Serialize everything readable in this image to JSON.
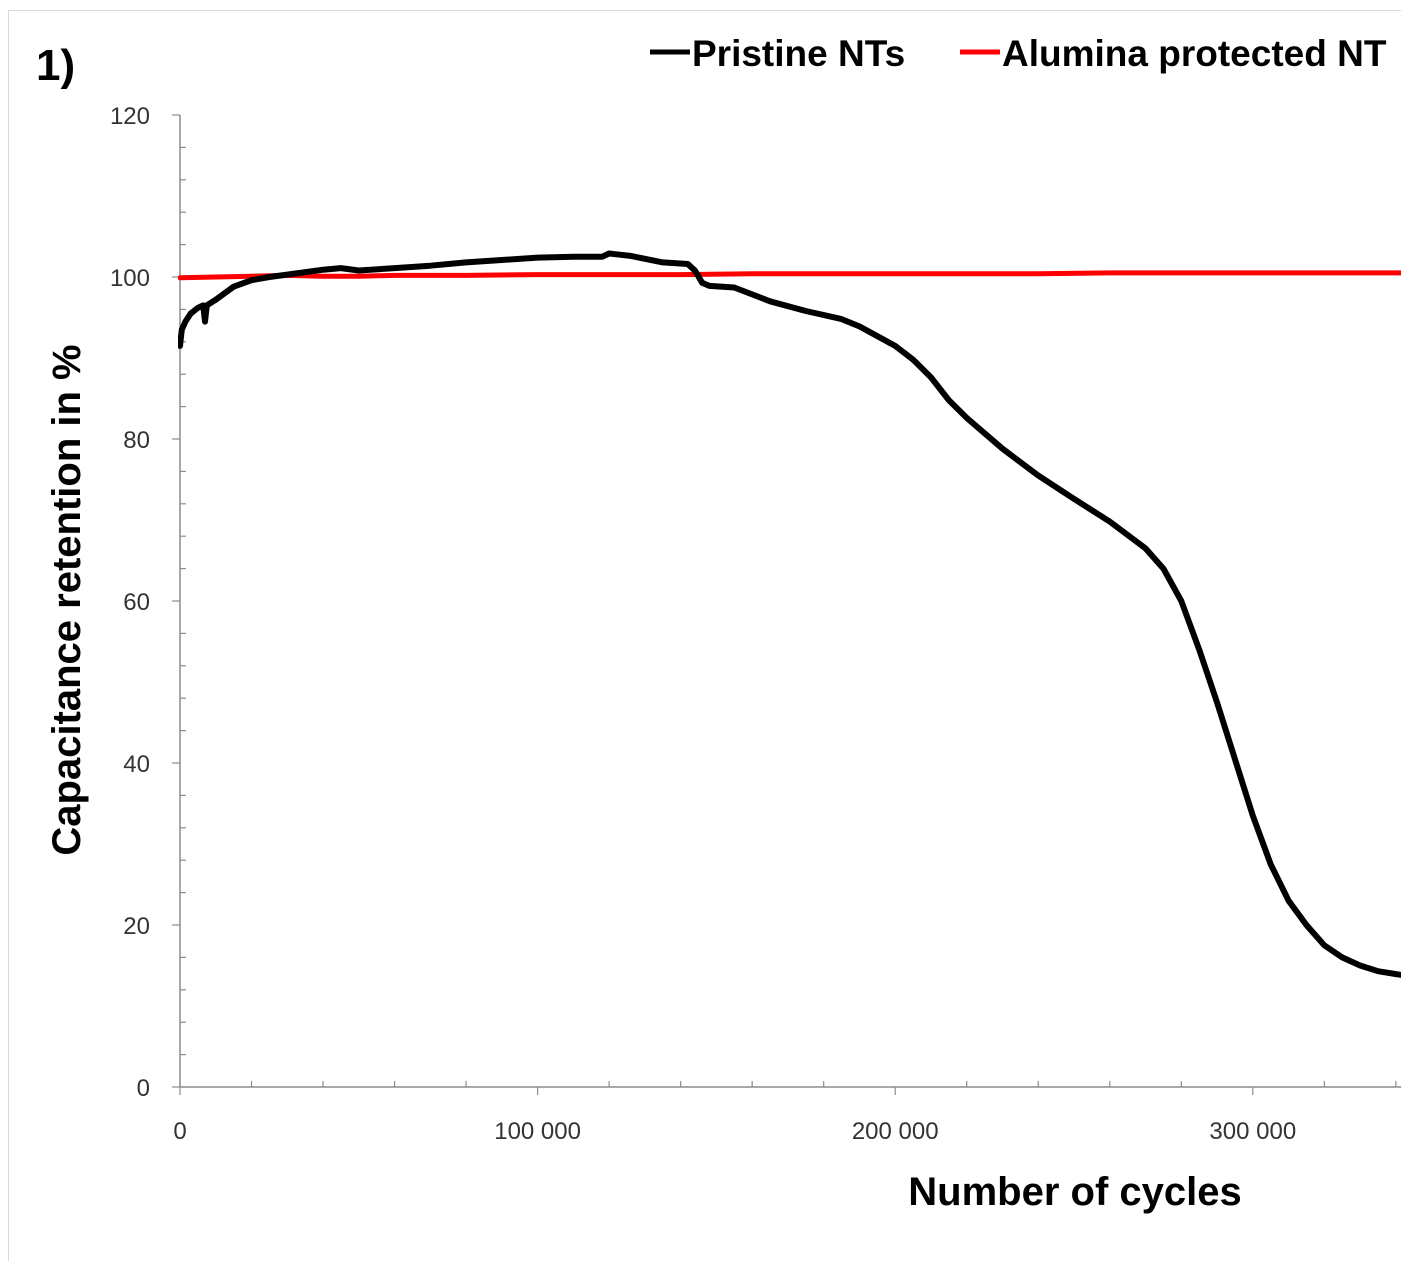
{
  "chart_data": {
    "type": "line",
    "panel_label": "1)",
    "title": "",
    "xlabel": "Number of cycles",
    "ylabel": "Capacitance retention in %",
    "xlim": [
      0,
      342000
    ],
    "ylim": [
      0,
      120
    ],
    "x_ticks": [
      0,
      100000,
      200000,
      300000
    ],
    "x_tick_labels": [
      "0",
      "100 000",
      "200 000",
      "300 000"
    ],
    "y_ticks": [
      0,
      20,
      40,
      60,
      80,
      100,
      120
    ],
    "y_tick_labels": [
      "0",
      "20",
      "40",
      "60",
      "80",
      "100",
      "120"
    ],
    "grid": false,
    "legend_position": "top",
    "series": [
      {
        "name": "Pristine NTs",
        "color": "#000000",
        "x": [
          0,
          500,
          1500,
          3000,
          5000,
          6500,
          7000,
          7500,
          10000,
          15000,
          20000,
          25000,
          30000,
          40000,
          45000,
          50000,
          60000,
          70000,
          80000,
          90000,
          100000,
          110000,
          118000,
          120000,
          122000,
          126000,
          135000,
          142000,
          144000,
          146000,
          148000,
          155000,
          165000,
          175000,
          185000,
          190000,
          195000,
          200000,
          205000,
          210000,
          215000,
          220000,
          230000,
          240000,
          250000,
          260000,
          270000,
          275000,
          280000,
          285000,
          290000,
          295000,
          300000,
          305000,
          310000,
          315000,
          320000,
          325000,
          330000,
          335000,
          342000
        ],
        "y": [
          91.5,
          93.5,
          94.5,
          95.5,
          96.2,
          96.5,
          94.5,
          96.5,
          97.2,
          98.8,
          99.6,
          100.0,
          100.3,
          100.9,
          101.1,
          100.8,
          101.1,
          101.4,
          101.8,
          102.1,
          102.4,
          102.5,
          102.5,
          102.9,
          102.8,
          102.6,
          101.8,
          101.6,
          100.8,
          99.3,
          98.9,
          98.7,
          97.0,
          95.8,
          94.8,
          93.9,
          92.7,
          91.5,
          89.8,
          87.6,
          84.8,
          82.6,
          78.8,
          75.5,
          72.6,
          69.8,
          66.5,
          64.0,
          60.0,
          54.0,
          47.5,
          40.5,
          33.5,
          27.5,
          23.0,
          20.0,
          17.5,
          16.0,
          15.0,
          14.3,
          13.8
        ]
      },
      {
        "name": "Alumina protected NT",
        "color": "#ff0000",
        "x": [
          0,
          10000,
          20000,
          30000,
          40000,
          50000,
          60000,
          80000,
          100000,
          120000,
          140000,
          160000,
          180000,
          200000,
          220000,
          240000,
          260000,
          280000,
          300000,
          320000,
          342000
        ],
        "y": [
          99.9,
          100.0,
          100.1,
          100.2,
          100.1,
          100.1,
          100.2,
          100.2,
          100.3,
          100.3,
          100.3,
          100.4,
          100.4,
          100.4,
          100.4,
          100.4,
          100.5,
          100.5,
          100.5,
          100.5,
          100.5
        ]
      }
    ]
  }
}
